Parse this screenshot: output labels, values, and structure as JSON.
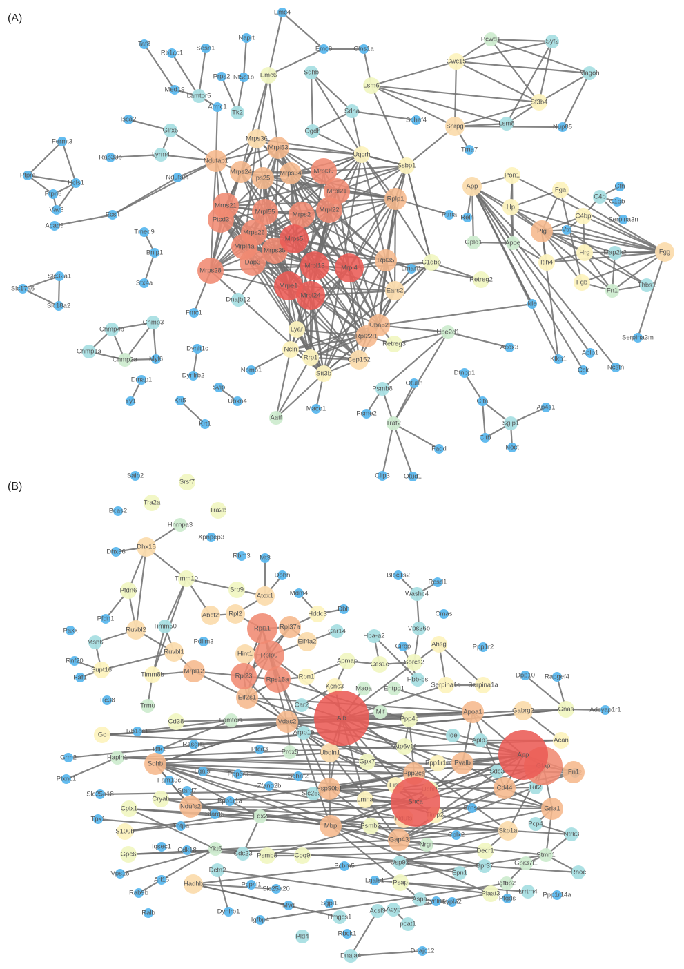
{
  "panels": {
    "a_label": "(A)",
    "b_label": "(B)"
  },
  "colors": {
    "c0": "#5cb8ee",
    "c1": "#a9dfe3",
    "c2": "#cfecd0",
    "c3": "#f1f7c3",
    "c4": "#fdf3bf",
    "c5": "#fbdcae",
    "c6": "#f6b88c",
    "c7": "#f08a72",
    "c8": "#eb5b55",
    "edge": "#6e6e6e"
  },
  "nodes": [
    {
      "id": "Emc4",
      "c": 0
    },
    {
      "id": "Naprt",
      "c": 0
    },
    {
      "id": "Emc8",
      "c": 0
    },
    {
      "id": "Clns1a",
      "c": 0
    },
    {
      "id": "Taf8",
      "c": 0
    },
    {
      "id": "Rb1cc1",
      "c": 0
    },
    {
      "id": "Sesn1",
      "c": 0
    },
    {
      "id": "Prps2",
      "c": 0
    },
    {
      "id": "Nt5c1b",
      "c": 0
    },
    {
      "id": "Emc6",
      "c": 3
    },
    {
      "id": "Sdhb",
      "c": 1
    },
    {
      "id": "Lsm6",
      "c": 3
    },
    {
      "id": "Pcwd1",
      "c": 2
    },
    {
      "id": "Syf2",
      "c": 1
    },
    {
      "id": "Cwc15",
      "c": 4
    },
    {
      "id": "Magoh",
      "c": 1
    },
    {
      "id": "Med19",
      "c": 0
    },
    {
      "id": "Lamtor5",
      "c": 1
    },
    {
      "id": "Sf3b4",
      "c": 4
    },
    {
      "id": "Armc1",
      "c": 0
    },
    {
      "id": "Tk2",
      "c": 1
    },
    {
      "id": "Sdha",
      "c": 1
    },
    {
      "id": "Sdhaf4",
      "c": 0
    },
    {
      "id": "Isca2",
      "c": 0
    },
    {
      "id": "Ogdh",
      "c": 1
    },
    {
      "id": "Snrpg",
      "c": 5
    },
    {
      "id": "Lsm8",
      "c": 1
    },
    {
      "id": "Nup85",
      "c": 0
    },
    {
      "id": "Glrx5",
      "c": 1
    },
    {
      "id": "Mrps36",
      "c": 5
    },
    {
      "id": "Tma7",
      "c": 0
    },
    {
      "id": "Fermt3",
      "c": 0
    },
    {
      "id": "Rab33b",
      "c": 0
    },
    {
      "id": "Lyrm4",
      "c": 1
    },
    {
      "id": "Mrpl53",
      "c": 6
    },
    {
      "id": "Uqcrh",
      "c": 4
    },
    {
      "id": "Ndufab1",
      "c": 6
    },
    {
      "id": "Ssbp1",
      "c": 4
    },
    {
      "id": "Ptprc",
      "c": 0
    },
    {
      "id": "Hcls1",
      "c": 0
    },
    {
      "id": "Mrps24",
      "c": 6
    },
    {
      "id": "ps25",
      "c": 6
    },
    {
      "id": "Mrps34",
      "c": 6
    },
    {
      "id": "Mrpl39",
      "c": 7
    },
    {
      "id": "Ndufaf4",
      "c": 0
    },
    {
      "id": "Pon1",
      "c": 4
    },
    {
      "id": "Ptpn6",
      "c": 0
    },
    {
      "id": "App",
      "c": 5
    },
    {
      "id": "Cfh",
      "c": 0
    },
    {
      "id": "Fga",
      "c": 4
    },
    {
      "id": "Mrpl21",
      "c": 7
    },
    {
      "id": "C4b",
      "c": 1
    },
    {
      "id": "C1qb",
      "c": 0
    },
    {
      "id": "Vav3",
      "c": 0
    },
    {
      "id": "Mrps21",
      "c": 7
    },
    {
      "id": "Rplp1",
      "c": 6
    },
    {
      "id": "Hp",
      "c": 4
    },
    {
      "id": "Acad9",
      "c": 0
    },
    {
      "id": "Ecsit",
      "c": 0
    },
    {
      "id": "Mrpl55",
      "c": 7
    },
    {
      "id": "Mrps2",
      "c": 7
    },
    {
      "id": "Mrpl22",
      "c": 7
    },
    {
      "id": "Ptcd3",
      "c": 7
    },
    {
      "id": "Ptma",
      "c": 0
    },
    {
      "id": "Reln",
      "c": 0
    },
    {
      "id": "C4bp",
      "c": 4
    },
    {
      "id": "Serpina3n",
      "c": 0
    },
    {
      "id": "Tmed9",
      "c": 0
    },
    {
      "id": "Plg",
      "c": 6
    },
    {
      "id": "Vtn",
      "c": 0
    },
    {
      "id": "Mrps26",
      "c": 7
    },
    {
      "id": "Mrps5",
      "c": 8
    },
    {
      "id": "Gpld1",
      "c": 2
    },
    {
      "id": "Apoe",
      "c": 2
    },
    {
      "id": "Mrpl4a",
      "c": 7
    },
    {
      "id": "Bnip1",
      "c": 0
    },
    {
      "id": "Mrps35",
      "c": 7
    },
    {
      "id": "Hrg",
      "c": 4
    },
    {
      "id": "Map2k2",
      "c": 1
    },
    {
      "id": "Fgg",
      "c": 5
    },
    {
      "id": "Dap3",
      "c": 7
    },
    {
      "id": "Mrpl13",
      "c": 8
    },
    {
      "id": "Mrpl4",
      "c": 8
    },
    {
      "id": "Rpl35",
      "c": 6
    },
    {
      "id": "C1qbp",
      "c": 3
    },
    {
      "id": "Itih4",
      "c": 4
    },
    {
      "id": "Mrps28",
      "c": 7
    },
    {
      "id": "Lman1",
      "c": 0
    },
    {
      "id": "Slc32a1",
      "c": 0
    },
    {
      "id": "Stx4a",
      "c": 0
    },
    {
      "id": "Retreg2",
      "c": 3
    },
    {
      "id": "Fgb",
      "c": 4
    },
    {
      "id": "Thbs1",
      "c": 1
    },
    {
      "id": "Slc17a6",
      "c": 0
    },
    {
      "id": "Mrpe1",
      "c": 8
    },
    {
      "id": "Ears2",
      "c": 5
    },
    {
      "id": "Fn1",
      "c": 2
    },
    {
      "id": "Slc18a2",
      "c": 0
    },
    {
      "id": "Mrpl24",
      "c": 8
    },
    {
      "id": "Ide",
      "c": 0
    },
    {
      "id": "Dnajb12",
      "c": 1
    },
    {
      "id": "Fmc1",
      "c": 0
    },
    {
      "id": "Uba52",
      "c": 6
    },
    {
      "id": "Chmp4b",
      "c": 1
    },
    {
      "id": "Chmp3",
      "c": 1
    },
    {
      "id": "Ube2d1",
      "c": 2
    },
    {
      "id": "Lyar",
      "c": 4
    },
    {
      "id": "Serpina3m",
      "c": 0
    },
    {
      "id": "Rpl22l1",
      "c": 6
    },
    {
      "id": "Retreg3",
      "c": 3
    },
    {
      "id": "Dynlt1c",
      "c": 0
    },
    {
      "id": "Acox3",
      "c": 0
    },
    {
      "id": "Chmp1a",
      "c": 1
    },
    {
      "id": "Ncln",
      "c": 4
    },
    {
      "id": "Rrp1",
      "c": 4
    },
    {
      "id": "Klkb1",
      "c": 0
    },
    {
      "id": "Chmp2a",
      "c": 2
    },
    {
      "id": "Myl6",
      "c": 0
    },
    {
      "id": "Cep152",
      "c": 5
    },
    {
      "id": "Aplp1",
      "c": 0
    },
    {
      "id": "Nomo1",
      "c": 0
    },
    {
      "id": "Stt3b",
      "c": 4
    },
    {
      "id": "Ncstn",
      "c": 0
    },
    {
      "id": "Cck",
      "c": 0
    },
    {
      "id": "Dynlrb2",
      "c": 0
    },
    {
      "id": "Dmap1",
      "c": 0
    },
    {
      "id": "Dtnbp1",
      "c": 0
    },
    {
      "id": "Otulin",
      "c": 0
    },
    {
      "id": "Svip",
      "c": 0
    },
    {
      "id": "Psmb8",
      "c": 1
    },
    {
      "id": "Yy1",
      "c": 0
    },
    {
      "id": "Ubxn4",
      "c": 0
    },
    {
      "id": "Clta",
      "c": 0
    },
    {
      "id": "Psme2",
      "c": 0
    },
    {
      "id": "Krt5",
      "c": 0
    },
    {
      "id": "Maco1",
      "c": 0
    },
    {
      "id": "Ap4s1",
      "c": 0
    },
    {
      "id": "Sgip1",
      "c": 1
    },
    {
      "id": "Traf2",
      "c": 2
    },
    {
      "id": "Aatf",
      "c": 2
    },
    {
      "id": "Krt1",
      "c": 0
    },
    {
      "id": "Cltb",
      "c": 0
    },
    {
      "id": "Noct",
      "c": 0
    },
    {
      "id": "Fadd",
      "c": 0
    },
    {
      "id": "Clip3",
      "c": 0
    },
    {
      "id": "Otud1",
      "c": 0
    },
    {
      "id": "Srsf7",
      "c": 3
    },
    {
      "id": "Saib2",
      "c": 0
    },
    {
      "id": "Tra2a",
      "c": 3
    },
    {
      "id": "Tra2b",
      "c": 3
    },
    {
      "id": "Bcas2",
      "c": 0
    },
    {
      "id": "Hnrnpa3",
      "c": 2
    },
    {
      "id": "Xpnpep3",
      "c": 0
    },
    {
      "id": "Dhx15",
      "c": 5
    },
    {
      "id": "Dhx36",
      "c": 0
    },
    {
      "id": "Rbm3",
      "c": 0
    },
    {
      "id": "Mt3",
      "c": 0
    },
    {
      "id": "Dohh",
      "c": 0
    },
    {
      "id": "Timm10",
      "c": 3
    },
    {
      "id": "Bloc1s2",
      "c": 0
    },
    {
      "id": "Rcsd1",
      "c": 0
    },
    {
      "id": "Pfdn6",
      "c": 3
    },
    {
      "id": "Srp9",
      "c": 3
    },
    {
      "id": "Atox1",
      "c": 5
    },
    {
      "id": "Mdm4",
      "c": 0
    },
    {
      "id": "Washc4",
      "c": 1
    },
    {
      "id": "Pfdn1",
      "c": 0
    },
    {
      "id": "Abcf2",
      "c": 5
    },
    {
      "id": "Rpl2",
      "c": 5
    },
    {
      "id": "Hddc3",
      "c": 4
    },
    {
      "id": "Dbh",
      "c": 0
    },
    {
      "id": "Cmas",
      "c": 0
    },
    {
      "id": "Paxx",
      "c": 0
    },
    {
      "id": "Ruvbl2",
      "c": 5
    },
    {
      "id": "Timm50",
      "c": 1
    },
    {
      "id": "Rpl11",
      "c": 7
    },
    {
      "id": "Rpl37a",
      "c": 6
    },
    {
      "id": "Vps26b",
      "c": 1
    },
    {
      "id": "Msh6",
      "c": 1
    },
    {
      "id": "Pdlim3",
      "c": 0
    },
    {
      "id": "Eif4a2",
      "c": 5
    },
    {
      "id": "Car14",
      "c": 1
    },
    {
      "id": "Hba-a2",
      "c": 1
    },
    {
      "id": "Ahsg",
      "c": 4
    },
    {
      "id": "Ppp1r2",
      "c": 0
    },
    {
      "id": "Ruvbl1",
      "c": 5
    },
    {
      "id": "Hint1",
      "c": 5
    },
    {
      "id": "Rplp0",
      "c": 7
    },
    {
      "id": "Cirbp",
      "c": 0
    },
    {
      "id": "Rnf20",
      "c": 0
    },
    {
      "id": "Supt16",
      "c": 4
    },
    {
      "id": "Paf1",
      "c": 0
    },
    {
      "id": "Mrpl12",
      "c": 6
    },
    {
      "id": "Apmap",
      "c": 3
    },
    {
      "id": "Ces1c",
      "c": 3
    },
    {
      "id": "Sorcs2",
      "c": 3
    },
    {
      "id": "Timm8b",
      "c": 4
    },
    {
      "id": "Rpl23",
      "c": 7
    },
    {
      "id": "Rps15a",
      "c": 7
    },
    {
      "id": "Rpn1",
      "c": 4
    },
    {
      "id": "Hbb-bs",
      "c": 1
    },
    {
      "id": "Dpp10",
      "c": 0
    },
    {
      "id": "Rapgef4",
      "c": 0
    },
    {
      "id": "Kcnc3",
      "c": 4
    },
    {
      "id": "Serpina1d",
      "c": 4
    },
    {
      "id": "Serpina1a",
      "c": 4
    },
    {
      "id": "Entpd1",
      "c": 2
    },
    {
      "id": "Tlc38",
      "c": 0
    },
    {
      "id": "Trmu",
      "c": 2
    },
    {
      "id": "Eif2s1",
      "c": 6
    },
    {
      "id": "Maoa",
      "c": 2
    },
    {
      "id": "Gabrg2",
      "c": 5
    },
    {
      "id": "Gnas",
      "c": 3
    },
    {
      "id": "Car2",
      "c": 1
    },
    {
      "id": "Alb",
      "c": 8
    },
    {
      "id": "Mif",
      "c": 2
    },
    {
      "id": "Adcyap1r1",
      "c": 0
    },
    {
      "id": "Cd38",
      "c": 3
    },
    {
      "id": "Ppp4c",
      "c": 3
    },
    {
      "id": "Apoa1",
      "c": 6
    },
    {
      "id": "Gc",
      "c": 4
    },
    {
      "id": "Rb1cc1",
      "c": 0
    },
    {
      "id": "Lamtor1",
      "c": 2
    },
    {
      "id": "Vdac2",
      "c": 6
    },
    {
      "id": "Arpp19",
      "c": 1
    },
    {
      "id": "Ide",
      "c": 1
    },
    {
      "id": "Aplp1",
      "c": 1
    },
    {
      "id": "Acan",
      "c": 4
    },
    {
      "id": "Rasgrf1",
      "c": 0
    },
    {
      "id": "Atp6v1f",
      "c": 3
    },
    {
      "id": "App",
      "c": 8
    },
    {
      "id": "Hapln1",
      "c": 2
    },
    {
      "id": "Btk1",
      "c": 0
    },
    {
      "id": "Ptcd3",
      "c": 0
    },
    {
      "id": "Prdx5",
      "c": 2
    },
    {
      "id": "Ubqln1",
      "c": 5
    },
    {
      "id": "Gpx7",
      "c": 3
    },
    {
      "id": "Ppp1r1b",
      "c": 4
    },
    {
      "id": "Pvalb",
      "c": 6
    },
    {
      "id": "Fn1",
      "c": 6
    },
    {
      "id": "Grm2",
      "c": 0
    },
    {
      "id": "Lgalsl",
      "c": 0
    },
    {
      "id": "Sdhb",
      "c": 6
    },
    {
      "id": "Ppp6r3",
      "c": 0
    },
    {
      "id": "Ppp2ca",
      "c": 6
    },
    {
      "id": "Sdc3",
      "c": 1
    },
    {
      "id": "Gfap",
      "c": 7
    },
    {
      "id": "Nrp2",
      "c": 0
    },
    {
      "id": "Plxnc1",
      "c": 0
    },
    {
      "id": "Fam13c",
      "c": 0
    },
    {
      "id": "Sdhaf2",
      "c": 0
    },
    {
      "id": "Fis1",
      "c": 4
    },
    {
      "id": "Uchl1",
      "c": 3
    },
    {
      "id": "Cd44",
      "c": 6
    },
    {
      "id": "Rit2",
      "c": 1
    },
    {
      "id": "Slc25a18",
      "c": 0
    },
    {
      "id": "Stard7",
      "c": 0
    },
    {
      "id": "Zfand2b",
      "c": 0
    },
    {
      "id": "Slc25a4",
      "c": 1
    },
    {
      "id": "Hsp90b1",
      "c": 6
    },
    {
      "id": "Lmna",
      "c": 4
    },
    {
      "id": "Snca",
      "c": 8
    },
    {
      "id": "Cryab",
      "c": 3
    },
    {
      "id": "Ppp1r1a",
      "c": 0
    },
    {
      "id": "Ndufs2",
      "c": 6
    },
    {
      "id": "Ernsa",
      "c": 0
    },
    {
      "id": "Gria1",
      "c": 6
    },
    {
      "id": "Cplx1",
      "c": 3
    },
    {
      "id": "Tpk1",
      "c": 0
    },
    {
      "id": "Stard5",
      "c": 0
    },
    {
      "id": "Ndufs",
      "c": 5
    },
    {
      "id": "Timp2",
      "c": 4
    },
    {
      "id": "S100b",
      "c": 4
    },
    {
      "id": "Thtpa",
      "c": 0
    },
    {
      "id": "Fdx2",
      "c": 2
    },
    {
      "id": "Psmb2",
      "c": 3
    },
    {
      "id": "Mbp",
      "c": 6
    },
    {
      "id": "Skp1a",
      "c": 5
    },
    {
      "id": "Pcp4",
      "c": 1
    },
    {
      "id": "Ntrk3",
      "c": 1
    },
    {
      "id": "Cplx2",
      "c": 0
    },
    {
      "id": "Nrgn",
      "c": 2
    },
    {
      "id": "Gap43",
      "c": 6
    },
    {
      "id": "Gpc6",
      "c": 3
    },
    {
      "id": "Iqsec1",
      "c": 0
    },
    {
      "id": "Cdk18",
      "c": 0
    },
    {
      "id": "Cdc23",
      "c": 1
    },
    {
      "id": "Psmb8",
      "c": 3
    },
    {
      "id": "Coq9",
      "c": 3
    },
    {
      "id": "Decr1",
      "c": 3
    },
    {
      "id": "Stmn1",
      "c": 2
    },
    {
      "id": "Ykt6",
      "c": 2
    },
    {
      "id": "Pcbm5",
      "c": 0
    },
    {
      "id": "Usp9x",
      "c": 1
    },
    {
      "id": "Gpr37",
      "c": 1
    },
    {
      "id": "Gpr37l1",
      "c": 2
    },
    {
      "id": "Rhoc",
      "c": 1
    },
    {
      "id": "Vps18",
      "c": 0
    },
    {
      "id": "Arl15",
      "c": 0
    },
    {
      "id": "Dctn2",
      "c": 1
    },
    {
      "id": "Hadhb",
      "c": 5
    },
    {
      "id": "Pcp4l1",
      "c": 0
    },
    {
      "id": "Slc25a20",
      "c": 0
    },
    {
      "id": "Epn1",
      "c": 1
    },
    {
      "id": "Igfbp2",
      "c": 2
    },
    {
      "id": "Lgals1",
      "c": 0
    },
    {
      "id": "Psap",
      "c": 3
    },
    {
      "id": "Plaat3",
      "c": 3
    },
    {
      "id": "Lrrtm4",
      "c": 1
    },
    {
      "id": "Ppp1r14a",
      "c": 0
    },
    {
      "id": "Rab9b",
      "c": 0
    },
    {
      "id": "Dynlrb2",
      "c": 0
    },
    {
      "id": "Ptgds",
      "c": 0
    },
    {
      "id": "Ralb",
      "c": 0
    },
    {
      "id": "Dynlrb1",
      "c": 0
    },
    {
      "id": "Mvd",
      "c": 0
    },
    {
      "id": "Sgpl1",
      "c": 0
    },
    {
      "id": "Aspa",
      "c": 1
    },
    {
      "id": "Lypla2",
      "c": 0
    },
    {
      "id": "Igfbp4",
      "c": 0
    },
    {
      "id": "Hmgcs1",
      "c": 1
    },
    {
      "id": "Acsl3",
      "c": 1
    },
    {
      "id": "Acyp",
      "c": 1
    },
    {
      "id": "pcat1",
      "c": 1
    },
    {
      "id": "Pld4",
      "c": 1
    },
    {
      "id": "Rbck1",
      "c": 0
    },
    {
      "id": "Dnaja4",
      "c": 1
    },
    {
      "id": "Dnajc12",
      "c": 0
    },
    {
      "id": "Cds2",
      "c": 0
    }
  ]
}
